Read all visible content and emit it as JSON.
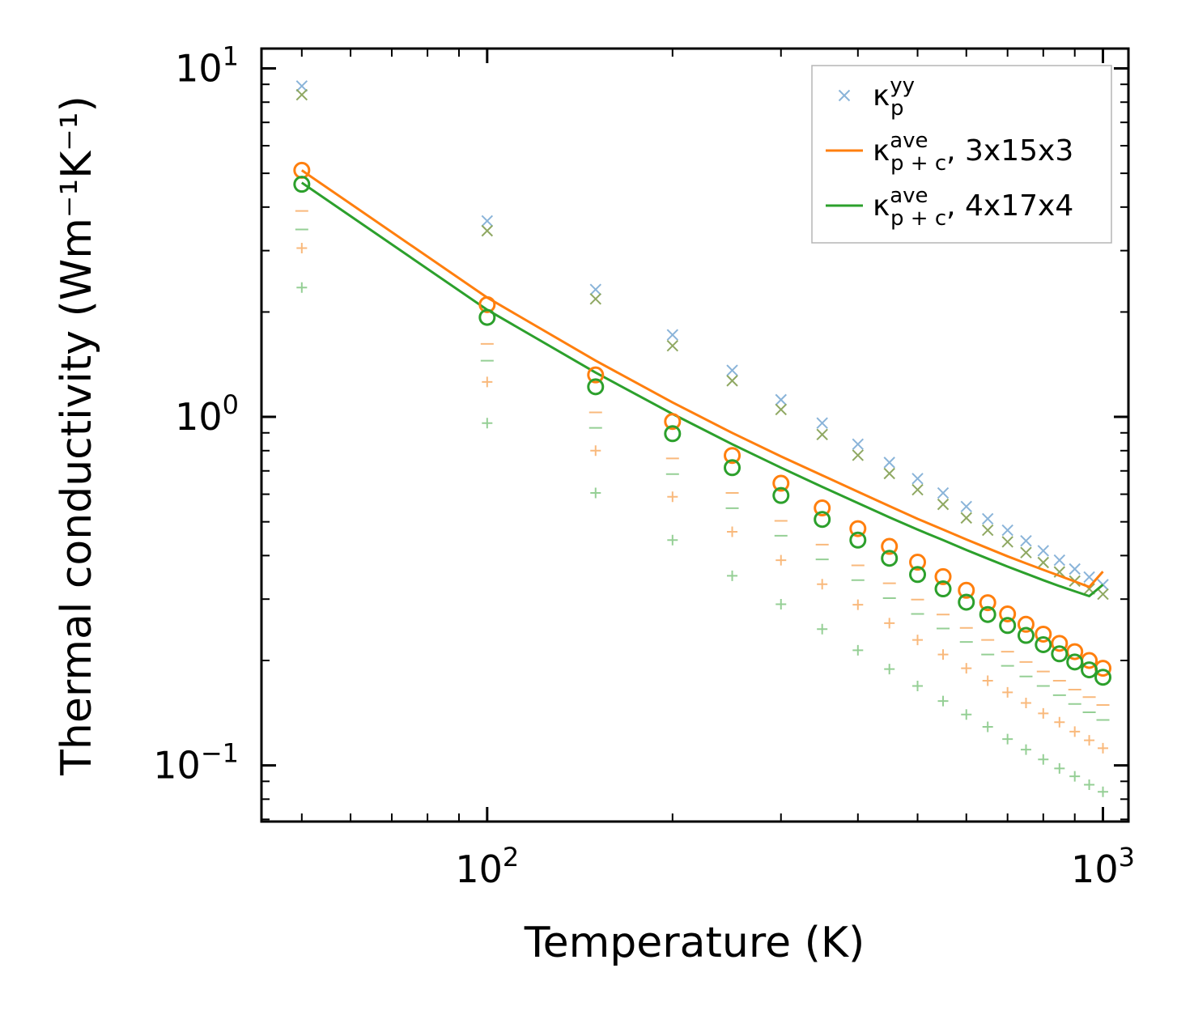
{
  "chart_data": {
    "type": "scatter",
    "xscale": "log",
    "yscale": "log",
    "xlabel": "Temperature (K)",
    "ylabel": "Thermal conductivity (Wm⁻¹K⁻¹)",
    "xlim": [
      43,
      1100
    ],
    "ylim": [
      0.069,
      11.4
    ],
    "xticks": [
      {
        "value": 100,
        "base": "10",
        "exp": "2"
      },
      {
        "value": 1000,
        "base": "10",
        "exp": "3"
      }
    ],
    "yticks": [
      {
        "value": 0.1,
        "base": "10",
        "exp": "−1"
      },
      {
        "value": 1,
        "base": "10",
        "exp": "0"
      },
      {
        "value": 10,
        "base": "10",
        "exp": "1"
      }
    ],
    "grid": false,
    "legend_position": "top-right",
    "x": [
      50,
      100,
      150,
      200,
      250,
      300,
      350,
      400,
      450,
      500,
      550,
      600,
      650,
      700,
      750,
      800,
      850,
      900,
      950,
      1000
    ],
    "series": [
      {
        "name": "kappa_p_yy_3x15x3",
        "marker": "x",
        "color": "#8ab4d9",
        "in_legend": true,
        "values": [
          8.9,
          3.65,
          2.32,
          1.72,
          1.36,
          1.12,
          0.96,
          0.835,
          0.74,
          0.665,
          0.605,
          0.553,
          0.51,
          0.473,
          0.441,
          0.413,
          0.388,
          0.366,
          0.347,
          0.33
        ]
      },
      {
        "name": "kappa_p_yy_4x17x4",
        "marker": "x",
        "color": "#8fa862",
        "in_legend": false,
        "values": [
          8.4,
          3.42,
          2.18,
          1.6,
          1.27,
          1.05,
          0.89,
          0.776,
          0.688,
          0.618,
          0.561,
          0.513,
          0.473,
          0.438,
          0.408,
          0.382,
          0.359,
          0.338,
          0.321,
          0.31
        ]
      },
      {
        "name": "kappa_pc_ave_3x15x3",
        "marker": "line",
        "color": "#ff7f0e",
        "in_legend": true,
        "values": [
          5.1,
          2.2,
          1.45,
          1.1,
          0.9,
          0.77,
          0.68,
          0.61,
          0.555,
          0.51,
          0.475,
          0.445,
          0.42,
          0.398,
          0.38,
          0.364,
          0.35,
          0.337,
          0.325,
          0.36
        ]
      },
      {
        "name": "kappa_pc_ave_4x17x4",
        "marker": "line",
        "color": "#2ca02c",
        "in_legend": true,
        "values": [
          4.7,
          2.03,
          1.34,
          1.02,
          0.835,
          0.715,
          0.63,
          0.566,
          0.515,
          0.475,
          0.443,
          0.415,
          0.392,
          0.372,
          0.355,
          0.34,
          0.327,
          0.316,
          0.306,
          0.33
        ]
      },
      {
        "name": "kappa_pc_circle_3x15x3",
        "marker": "o",
        "color": "#ff7f0e",
        "in_legend": false,
        "values": [
          5.1,
          2.1,
          1.32,
          0.97,
          0.775,
          0.645,
          0.548,
          0.478,
          0.425,
          0.383,
          0.348,
          0.318,
          0.293,
          0.272,
          0.254,
          0.238,
          0.224,
          0.212,
          0.2,
          0.19
        ]
      },
      {
        "name": "kappa_pc_circle_4x17x4",
        "marker": "o",
        "color": "#2ca02c",
        "in_legend": false,
        "values": [
          4.65,
          1.93,
          1.22,
          0.895,
          0.715,
          0.595,
          0.508,
          0.443,
          0.393,
          0.353,
          0.321,
          0.294,
          0.271,
          0.252,
          0.236,
          0.222,
          0.209,
          0.198,
          0.188,
          0.179
        ]
      },
      {
        "name": "kappa_minus_3x15x3",
        "marker": "-",
        "color": "#f9b97c",
        "in_legend": false,
        "values": [
          3.9,
          1.62,
          1.03,
          0.76,
          0.605,
          0.503,
          0.43,
          0.375,
          0.333,
          0.299,
          0.271,
          0.248,
          0.229,
          0.212,
          0.198,
          0.186,
          0.175,
          0.165,
          0.157,
          0.149
        ]
      },
      {
        "name": "kappa_minus_4x17x4",
        "marker": "-",
        "color": "#95cf95",
        "in_legend": false,
        "values": [
          3.45,
          1.45,
          0.93,
          0.685,
          0.547,
          0.456,
          0.39,
          0.34,
          0.302,
          0.272,
          0.247,
          0.226,
          0.208,
          0.193,
          0.18,
          0.169,
          0.159,
          0.15,
          0.142,
          0.135
        ]
      },
      {
        "name": "kappa_plus_3x15x3",
        "marker": "+",
        "color": "#f9b97c",
        "in_legend": false,
        "values": [
          3.05,
          1.26,
          0.8,
          0.59,
          0.468,
          0.388,
          0.331,
          0.289,
          0.256,
          0.229,
          0.208,
          0.19,
          0.175,
          0.162,
          0.151,
          0.141,
          0.133,
          0.125,
          0.118,
          0.112
        ]
      },
      {
        "name": "kappa_plus_4x17x4",
        "marker": "+",
        "color": "#95cf95",
        "in_legend": false,
        "values": [
          2.35,
          0.96,
          0.605,
          0.443,
          0.35,
          0.29,
          0.246,
          0.214,
          0.189,
          0.169,
          0.153,
          0.14,
          0.129,
          0.119,
          0.111,
          0.104,
          0.098,
          0.093,
          0.088,
          0.084
        ]
      }
    ],
    "legend": [
      {
        "marker": "x",
        "color": "#8ab4d9",
        "sym": "κ",
        "sup": "yy",
        "sub": "p",
        "suffix": ""
      },
      {
        "marker": "line",
        "color": "#ff7f0e",
        "sym": "κ",
        "sup": "ave",
        "sub": "p + c",
        "suffix": ", 3x15x3"
      },
      {
        "marker": "line",
        "color": "#2ca02c",
        "sym": "κ",
        "sup": "ave",
        "sub": "p + c",
        "suffix": ", 4x17x4"
      }
    ]
  }
}
